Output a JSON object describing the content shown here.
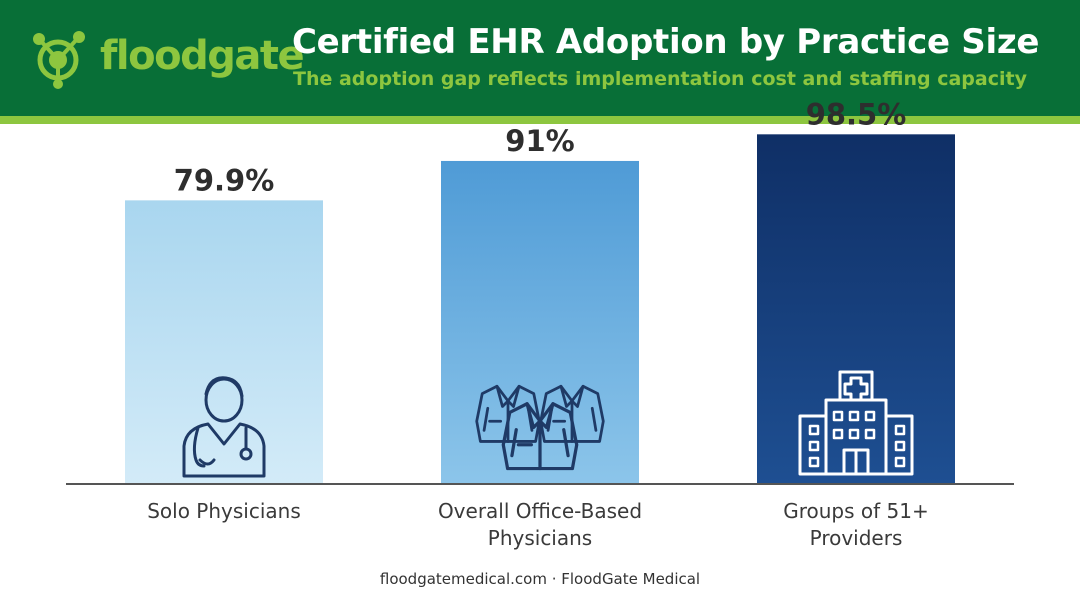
{
  "header": {
    "logo_text": "floodgate",
    "title": "Certified EHR Adoption by Practice Size",
    "subtitle": "The adoption gap reflects implementation cost and staffing capacity"
  },
  "footer": {
    "text": "floodgatemedical.com · FloodGate Medical"
  },
  "colors": {
    "header_bg": "#086f37",
    "brand_lime": "#8dc63f",
    "icon_stroke": "#1f3a66"
  },
  "chart_data": {
    "type": "bar",
    "title": "Certified EHR Adoption by Practice Size",
    "subtitle": "The adoption gap reflects implementation cost and staffing capacity",
    "xlabel": "",
    "ylabel": "",
    "grid": false,
    "legend": "none",
    "ylim": [
      0,
      100
    ],
    "categories": [
      [
        "Solo Physicians"
      ],
      [
        "Overall Office-Based",
        "Physicians"
      ],
      [
        "Groups of 51+",
        "Providers"
      ]
    ],
    "values": [
      79.9,
      91,
      98.5
    ],
    "data_labels": [
      "79.9%",
      "91%",
      "98.5%"
    ],
    "icons": [
      "physician-icon",
      "lab-coats-icon",
      "hospital-building-icon"
    ],
    "bar_colors": [
      [
        "#a9d6ef",
        "#d3ebf8"
      ],
      [
        "#4f9bd6",
        "#8cc5ea"
      ],
      [
        "#0f2f66",
        "#1e4f92"
      ]
    ]
  }
}
